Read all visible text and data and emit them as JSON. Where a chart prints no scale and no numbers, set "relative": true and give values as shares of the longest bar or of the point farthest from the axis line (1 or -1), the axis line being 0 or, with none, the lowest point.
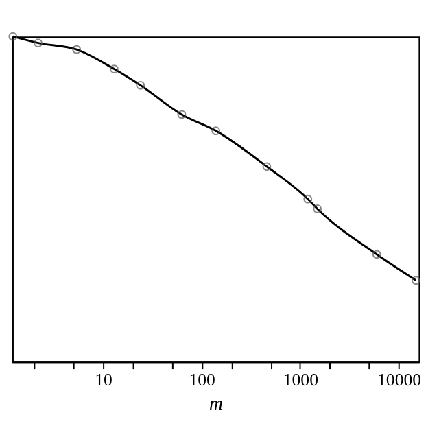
{
  "chart_data": {
    "type": "line",
    "xlabel": "m",
    "relative": true,
    "log": "x",
    "tick_labels": "x",
    "marker": "circle",
    "line_style": "solid",
    "grid": false,
    "xlim": [
      1.2,
      16000
    ],
    "xticks": [
      {
        "value": 2,
        "label": null
      },
      {
        "value": 5,
        "label": null
      },
      10,
      {
        "value": 20,
        "label": null
      },
      {
        "value": 50,
        "label": null
      },
      100,
      {
        "value": 200,
        "label": null
      },
      {
        "value": 500,
        "label": null
      },
      1000,
      {
        "value": 2000,
        "label": null
      },
      {
        "value": 5000,
        "label": null
      },
      10000
    ],
    "series": [
      {
        "color": "#000000",
        "x": [
          1.22,
          2.2,
          5.4,
          13,
          24,
          63,
          140,
          460,
          1200,
          1500,
          6000,
          15000
        ],
        "values": [
          1.0,
          0.98,
          0.96,
          0.9,
          0.85,
          0.76,
          0.71,
          0.6,
          0.5,
          0.47,
          0.33,
          0.25
        ]
      }
    ]
  }
}
